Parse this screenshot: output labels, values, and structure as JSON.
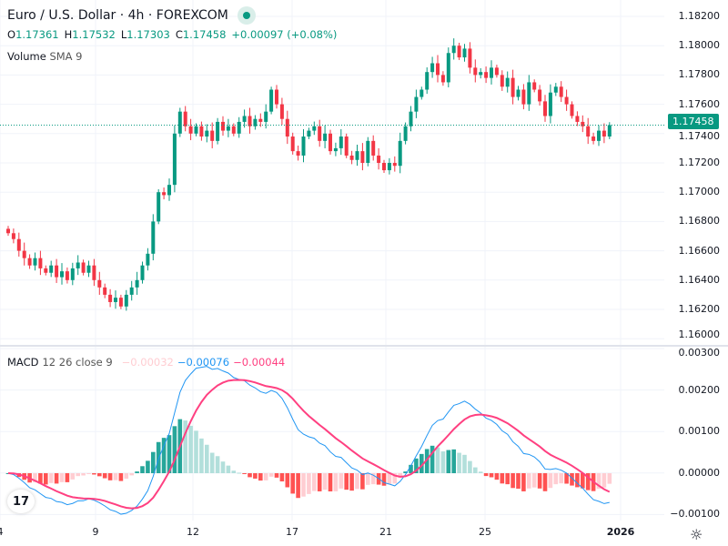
{
  "header": {
    "title": "Euro / U.S. Dollar · 4h · FOREXCOM",
    "open_label": "O",
    "open": "1.17361",
    "high_label": "H",
    "high": "1.17532",
    "low_label": "L",
    "low": "1.17303",
    "close_label": "C",
    "close": "1.17458",
    "change": "+0.00097 (+0.08%)"
  },
  "volume": {
    "label": "Volume",
    "sma": "SMA 9"
  },
  "macd": {
    "label": "MACD",
    "params": "12 26 close 9",
    "hist": "−0.00032",
    "macd": "−0.00076",
    "signal": "−0.00044"
  },
  "price_axis": [
    "1.18200",
    "1.18000",
    "1.17800",
    "1.17600",
    "1.17400",
    "1.17200",
    "1.17000",
    "1.16800",
    "1.16600",
    "1.16400",
    "1.16200",
    "1.16000"
  ],
  "macd_axis": [
    "0.00300",
    "0.00200",
    "0.00100",
    "0.00000",
    "−0.00100"
  ],
  "current_price": "1.17458",
  "time_axis": [
    "4",
    "9",
    "12",
    "17",
    "21",
    "25",
    "2026"
  ],
  "colors": {
    "up": "#089981",
    "down": "#f23645",
    "macd": "#2196f3",
    "signal": "#ff4081"
  },
  "chart_data": {
    "type": "candlestick",
    "symbol": "EURUSD",
    "timeframe": "4h",
    "ylim": [
      1.16,
      1.182
    ],
    "closes": [
      1.1672,
      1.1668,
      1.166,
      1.1655,
      1.165,
      1.1655,
      1.1648,
      1.1645,
      1.165,
      1.1642,
      1.1646,
      1.164,
      1.1648,
      1.1652,
      1.1645,
      1.165,
      1.164,
      1.1635,
      1.163,
      1.1625,
      1.1628,
      1.1622,
      1.163,
      1.1635,
      1.164,
      1.165,
      1.1658,
      1.168,
      1.17,
      1.1698,
      1.1705,
      1.174,
      1.1755,
      1.1745,
      1.174,
      1.1745,
      1.1738,
      1.1742,
      1.1735,
      1.1748,
      1.1742,
      1.1745,
      1.174,
      1.1748,
      1.1752,
      1.1745,
      1.175,
      1.1748,
      1.1755,
      1.177,
      1.176,
      1.175,
      1.1738,
      1.1728,
      1.1725,
      1.1738,
      1.1742,
      1.1745,
      1.1735,
      1.174,
      1.1728,
      1.173,
      1.1738,
      1.1725,
      1.1722,
      1.1728,
      1.172,
      1.1735,
      1.1725,
      1.172,
      1.1715,
      1.172,
      1.1718,
      1.1735,
      1.1745,
      1.1755,
      1.1765,
      1.177,
      1.1782,
      1.1788,
      1.178,
      1.1775,
      1.1795,
      1.18,
      1.1792,
      1.1798,
      1.1785,
      1.178,
      1.1782,
      1.1778,
      1.1785,
      1.178,
      1.1772,
      1.1778,
      1.1765,
      1.177,
      1.176,
      1.1775,
      1.177,
      1.1762,
      1.1752,
      1.1768,
      1.1772,
      1.1765,
      1.176,
      1.1752,
      1.1748,
      1.1745,
      1.1738,
      1.1735,
      1.1742,
      1.1738,
      1.17458
    ]
  }
}
